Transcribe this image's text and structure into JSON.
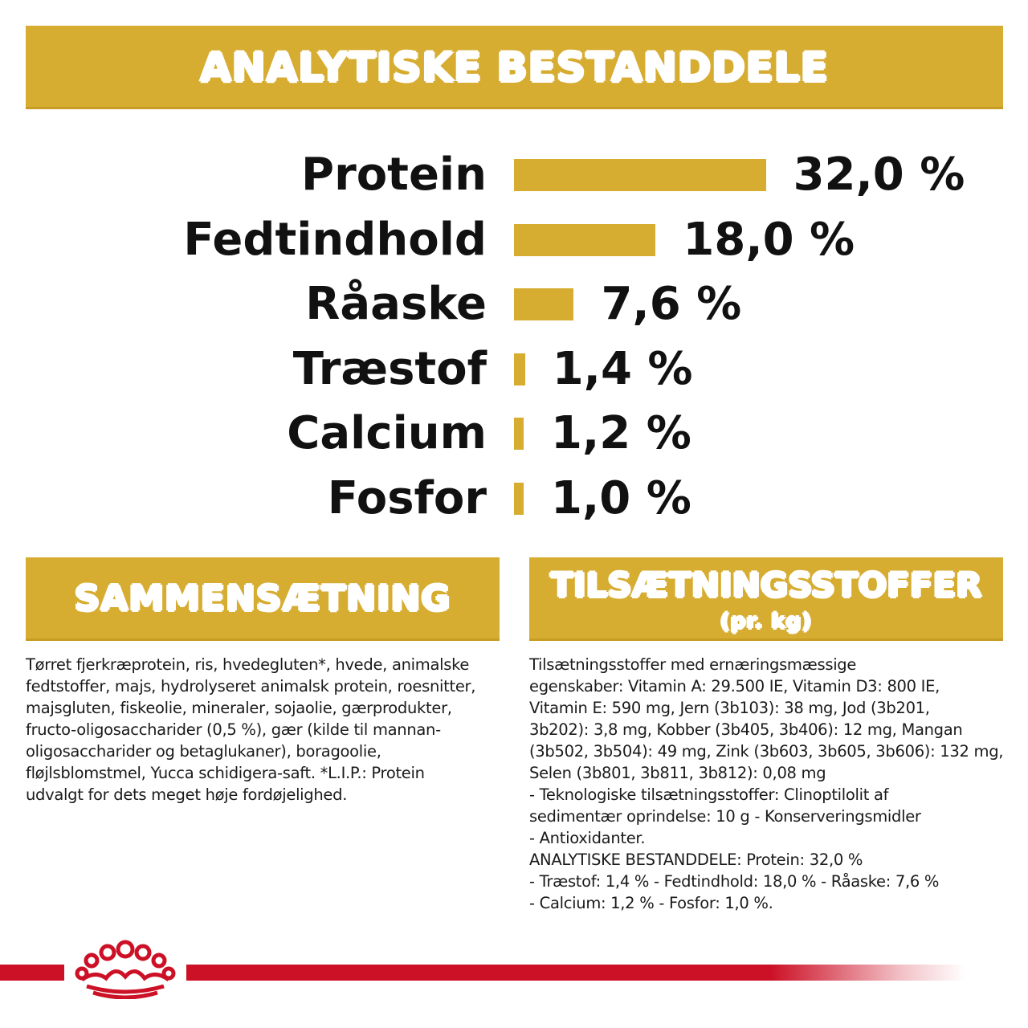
{
  "header": {
    "title": "ANALYTISKE BESTANDDELE"
  },
  "nutrients": [
    {
      "label": "Protein",
      "value_text": "32,0 %",
      "value": 32.0
    },
    {
      "label": "Fedtindhold",
      "value_text": "18,0 %",
      "value": 18.0
    },
    {
      "label": "Råaske",
      "value_text": "7,6 %",
      "value": 7.6
    },
    {
      "label": "Træstof",
      "value_text": "1,4 %",
      "value": 1.4
    },
    {
      "label": "Calcium",
      "value_text": "1,2 %",
      "value": 1.2
    },
    {
      "label": "Fosfor",
      "value_text": "1,0 %",
      "value": 1.0
    }
  ],
  "composition": {
    "title": "SAMMENSÆTNING",
    "text": "Tørret fjerkræprotein, ris, hvedegluten*, hvede, animalske\nfedtstoffer, majs, hydrolyseret animalsk protein, roesnitter,\nmajsgluten, fiskeolie, mineraler, sojaolie, gærprodukter,\nfructo-oligosaccharider (0,5 %), gær (kilde til mannan-\noligosaccharider og betaglukaner), boragoolie,\nfløjlsblomstmel, Yucca schidigera-saft. *L.I.P.: Protein\nudvalgt for dets meget høje fordøjelighed."
  },
  "additives": {
    "title": "TILSÆTNINGSSTOFFER",
    "subtitle": "(pr. kg)",
    "text": "Tilsætningsstoffer med ernæringsmæssige\negenskaber: Vitamin A: 29.500 IE, Vitamin D3: 800 IE,\nVitamin E: 590 mg, Jern (3b103): 38 mg, Jod (3b201,\n3b202): 3,8 mg, Kobber (3b405, 3b406): 12 mg, Mangan\n(3b502, 3b504): 49 mg, Zink (3b603, 3b605, 3b606): 132 mg,\nSelen (3b801, 3b811, 3b812): 0,08 mg\n- Teknologiske tilsætningsstoffer: Clinoptilolit af\nsedimentær oprindelse: 10 g - Konserveringsmidler\n- Antioxidanter.\nANALYTISKE BESTANDDELE: Protein: 32,0 %\n- Træstof: 1,4 % - Fedtindhold: 18,0 % - Råaske: 7,6 %\n- Calcium: 1,2 % - Fosfor: 1,0 %."
  },
  "colors": {
    "gold": "#d6ac31",
    "red": "#cc1126"
  },
  "icons": {
    "logo": "crown-icon"
  }
}
